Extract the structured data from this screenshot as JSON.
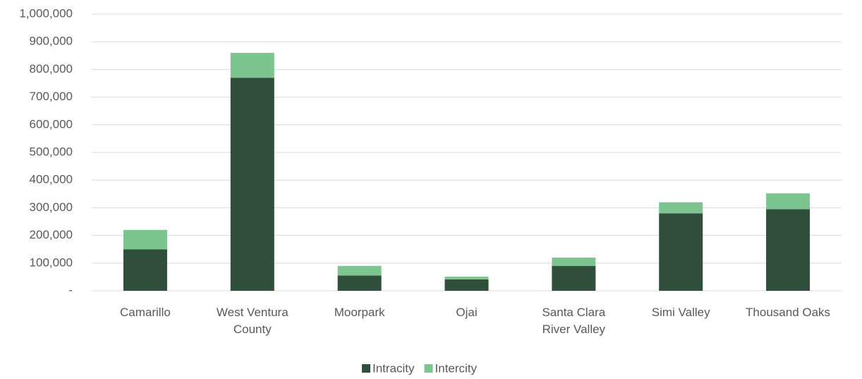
{
  "chart_data": {
    "type": "stacked_bar",
    "categories": [
      "Camarillo",
      "West Ventura County",
      "Moorpark",
      "Ojai",
      "Santa Clara River Valley",
      "Simi Valley",
      "Thousand Oaks"
    ],
    "series": [
      {
        "name": "Intracity",
        "color": "#2f4e3b",
        "values": [
          150000,
          770000,
          55000,
          41000,
          90000,
          280000,
          295000
        ]
      },
      {
        "name": "Intercity",
        "color": "#7dc58f",
        "values": [
          70000,
          90000,
          35000,
          10000,
          30000,
          40000,
          57000
        ]
      }
    ],
    "ylim": [
      0,
      1000000
    ],
    "yticks": [
      {
        "value": 0,
        "label": "-"
      },
      {
        "value": 100000,
        "label": "100,000"
      },
      {
        "value": 200000,
        "label": "200,000"
      },
      {
        "value": 300000,
        "label": "300,000"
      },
      {
        "value": 400000,
        "label": "400,000"
      },
      {
        "value": 500000,
        "label": "500,000"
      },
      {
        "value": 600000,
        "label": "600,000"
      },
      {
        "value": 700000,
        "label": "700,000"
      },
      {
        "value": 800000,
        "label": "800,000"
      },
      {
        "value": 900000,
        "label": "900,000"
      },
      {
        "value": 1000000,
        "label": "1,000,000"
      }
    ],
    "grid": true,
    "legend": "bottom"
  }
}
